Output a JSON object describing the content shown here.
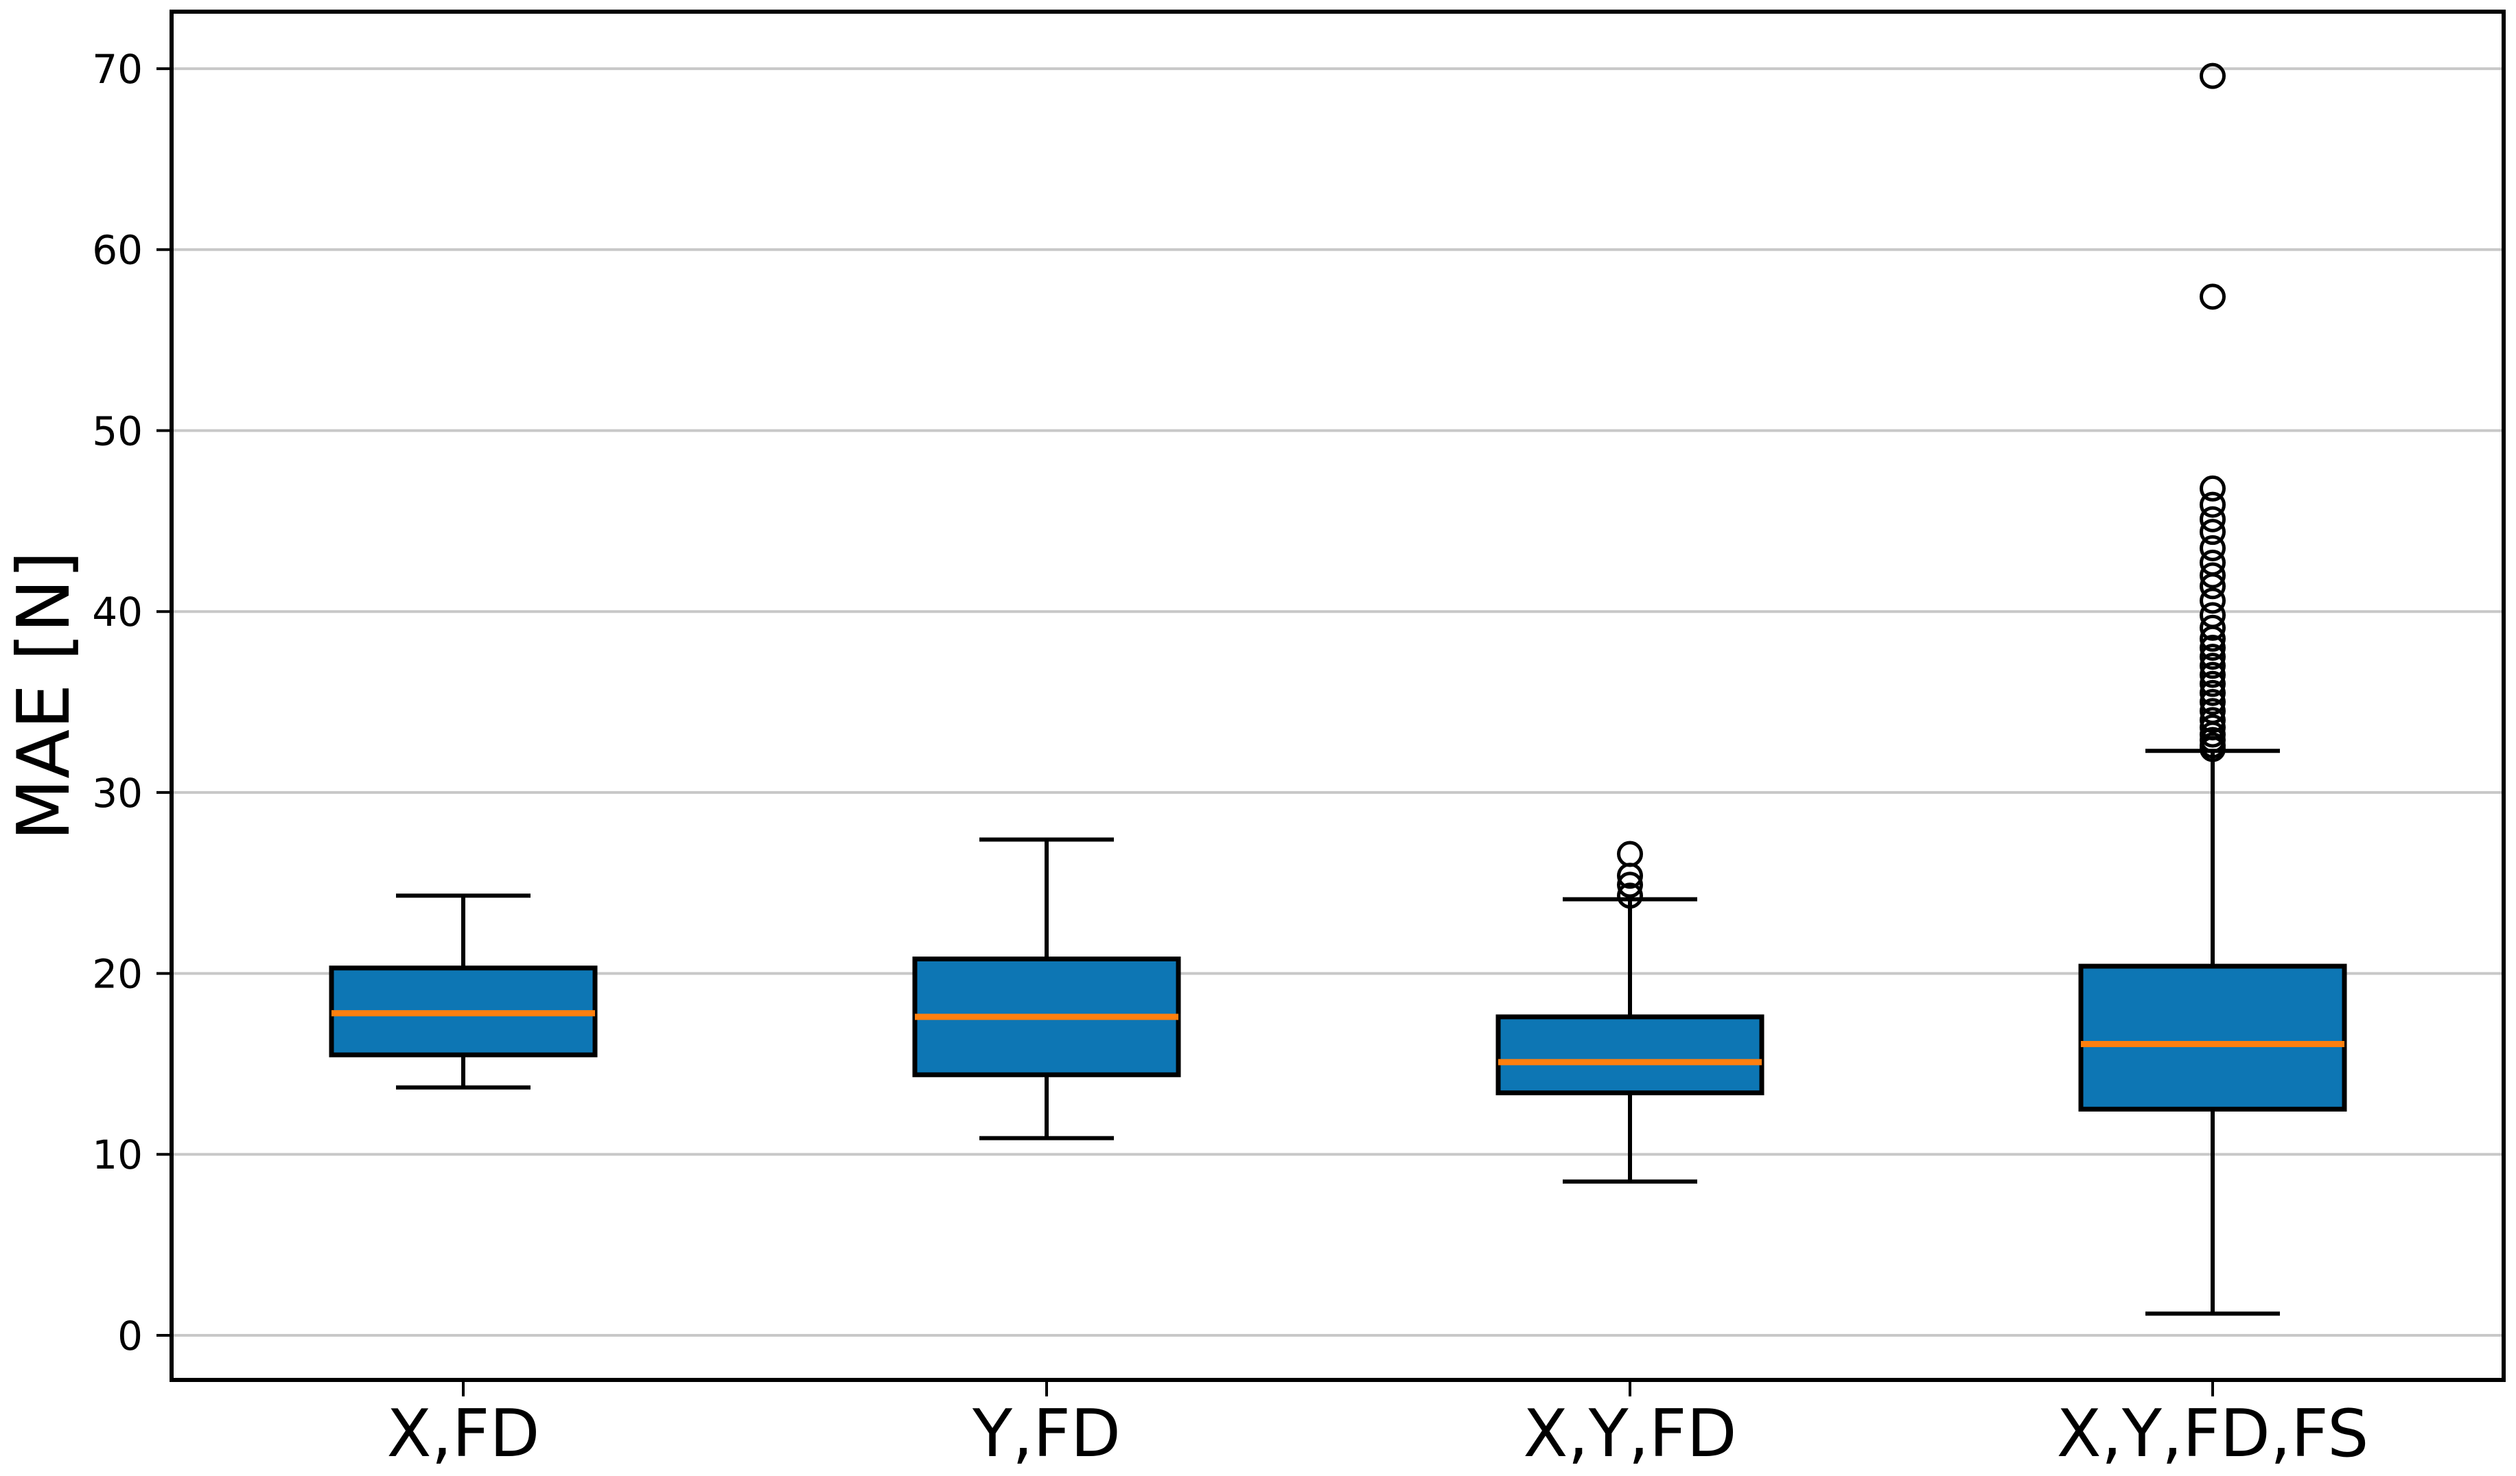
{
  "figure": {
    "background": "#ffffff"
  },
  "chart_data": {
    "type": "boxplot",
    "title": "",
    "xlabel": "",
    "ylabel": "MAE [N]",
    "grid": "horizontal-gridlines",
    "legend": "none",
    "yticks": [
      0,
      10,
      20,
      30,
      40,
      50,
      60,
      70
    ],
    "ylim": [
      -2.5,
      73.2
    ],
    "categories": [
      "X,FD",
      "Y,FD",
      "X,Y,FD",
      "X,Y,FD,FS"
    ],
    "series": [
      {
        "label": "X,FD",
        "whislo": 13.7,
        "q1": 15.5,
        "med": 17.8,
        "q3": 20.3,
        "whishi": 24.3,
        "fliers": []
      },
      {
        "label": "Y,FD",
        "whislo": 10.9,
        "q1": 14.4,
        "med": 17.6,
        "q3": 20.8,
        "whishi": 27.4,
        "fliers": []
      },
      {
        "label": "X,Y,FD",
        "whislo": 8.5,
        "q1": 13.4,
        "med": 15.1,
        "q3": 17.6,
        "whishi": 24.1,
        "fliers": [
          24.3,
          24.9,
          25.4,
          26.6
        ]
      },
      {
        "label": "X,Y,FD,FS",
        "whislo": 1.2,
        "q1": 12.5,
        "med": 16.1,
        "q3": 20.4,
        "whishi": 32.3,
        "fliers": [
          32.4,
          32.6,
          32.9,
          33.2,
          33.6,
          34.0,
          34.5,
          35.0,
          35.5,
          36.0,
          36.5,
          37.0,
          37.5,
          38.0,
          38.5,
          39.1,
          39.8,
          40.6,
          41.4,
          42.0,
          42.7,
          43.5,
          44.4,
          45.1,
          45.9,
          46.8,
          57.4,
          69.6
        ]
      }
    ],
    "colors": {
      "box_fill": "#0d76b4",
      "box_edge": "#000000",
      "median": "#ff7f0e",
      "whisker": "#000000",
      "cap": "#000000",
      "flier_edge": "#000000",
      "gridline": "#c8c8c8",
      "spine": "#000000",
      "text": "#000000",
      "background": "#ffffff"
    }
  }
}
